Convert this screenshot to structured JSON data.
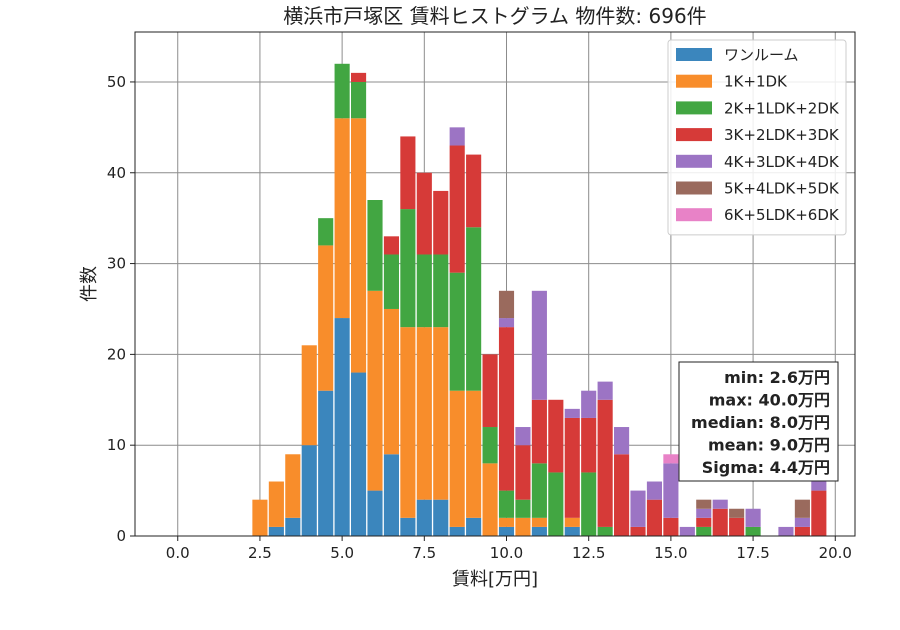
{
  "chart_data": {
    "type": "bar",
    "stacked": true,
    "title": "横浜市戸塚区 賃料ヒストグラム 物件数: 696件",
    "xlabel": "賃料[万円]",
    "ylabel": "件数",
    "xlim": [
      -1.3,
      20.6
    ],
    "ylim": [
      0,
      55.5
    ],
    "xticks": [
      0.0,
      2.5,
      5.0,
      7.5,
      10.0,
      12.5,
      15.0,
      17.5,
      20.0
    ],
    "xtick_labels": [
      "0.0",
      "2.5",
      "5.0",
      "7.5",
      "10.0",
      "12.5",
      "15.0",
      "17.5",
      "20.0"
    ],
    "yticks": [
      0,
      10,
      20,
      30,
      40,
      50
    ],
    "ytick_labels": [
      "0",
      "10",
      "20",
      "30",
      "40",
      "50"
    ],
    "grid": true,
    "legend_position": "top-right",
    "bin_width": 0.5,
    "x": [
      2.5,
      3.0,
      3.5,
      4.0,
      4.5,
      5.0,
      5.5,
      6.0,
      6.5,
      7.0,
      7.5,
      8.0,
      8.5,
      9.0,
      9.5,
      10.0,
      10.5,
      11.0,
      11.5,
      12.0,
      12.5,
      13.0,
      13.5,
      14.0,
      14.5,
      15.0,
      15.5,
      16.0,
      16.5,
      17.0,
      17.5,
      18.0,
      18.5,
      19.0,
      19.5
    ],
    "series": [
      {
        "name": "ワンルーム",
        "color": "#3b86bd",
        "values": [
          0,
          1,
          2,
          10,
          16,
          24,
          18,
          5,
          9,
          2,
          4,
          4,
          1,
          2,
          0,
          1,
          0,
          1,
          0,
          1,
          0,
          0,
          0,
          0,
          0,
          0,
          0,
          0,
          0,
          0,
          0,
          0,
          0,
          0,
          0
        ]
      },
      {
        "name": "1K+1DK",
        "color": "#f88d2b",
        "values": [
          4,
          5,
          7,
          11,
          16,
          22,
          28,
          22,
          16,
          21,
          19,
          19,
          15,
          14,
          8,
          1,
          2,
          1,
          0,
          1,
          0,
          0,
          0,
          0,
          0,
          0,
          0,
          0,
          0,
          0,
          0,
          0,
          0,
          0,
          0
        ]
      },
      {
        "name": "2K+1LDK+2DK",
        "color": "#42a642",
        "values": [
          0,
          0,
          0,
          0,
          3,
          6,
          4,
          10,
          6,
          13,
          8,
          8,
          13,
          18,
          4,
          3,
          2,
          6,
          7,
          0,
          7,
          1,
          0,
          0,
          0,
          0,
          0,
          1,
          0,
          0,
          1,
          0,
          0,
          0,
          0
        ]
      },
      {
        "name": "3K+2LDK+3DK",
        "color": "#d63a38",
        "values": [
          0,
          0,
          0,
          0,
          0,
          0,
          1,
          0,
          2,
          8,
          9,
          7,
          14,
          8,
          8,
          18,
          6,
          7,
          8,
          11,
          6,
          14,
          9,
          1,
          4,
          2,
          0,
          1,
          3,
          2,
          0,
          0,
          0,
          1,
          5
        ]
      },
      {
        "name": "4K+3LDK+4DK",
        "color": "#9c74c4",
        "values": [
          0,
          0,
          0,
          0,
          0,
          0,
          0,
          0,
          0,
          0,
          0,
          0,
          2,
          0,
          0,
          1,
          2,
          12,
          0,
          1,
          3,
          2,
          3,
          4,
          2,
          6,
          1,
          1,
          1,
          0,
          2,
          0,
          1,
          1,
          1
        ]
      },
      {
        "name": "5K+4LDK+5DK",
        "color": "#9a6a5d",
        "values": [
          0,
          0,
          0,
          0,
          0,
          0,
          0,
          0,
          0,
          0,
          0,
          0,
          0,
          0,
          0,
          3,
          0,
          0,
          0,
          0,
          0,
          0,
          0,
          0,
          0,
          0,
          0,
          1,
          0,
          1,
          0,
          0,
          0,
          2,
          0
        ]
      },
      {
        "name": "6K+5LDK+6DK",
        "color": "#e882c7",
        "values": [
          0,
          0,
          0,
          0,
          0,
          0,
          0,
          0,
          0,
          0,
          0,
          0,
          0,
          0,
          0,
          0,
          0,
          0,
          0,
          0,
          0,
          0,
          0,
          0,
          0,
          1,
          0,
          0,
          0,
          0,
          0,
          0,
          0,
          0,
          0
        ]
      }
    ],
    "stats_box": [
      "min: 2.6万円",
      "max: 40.0万円",
      "median: 8.0万円",
      "mean: 9.0万円",
      "Sigma: 4.4万円"
    ]
  },
  "colors": {
    "grid": "#8c8c8c",
    "axis": "#222222"
  }
}
